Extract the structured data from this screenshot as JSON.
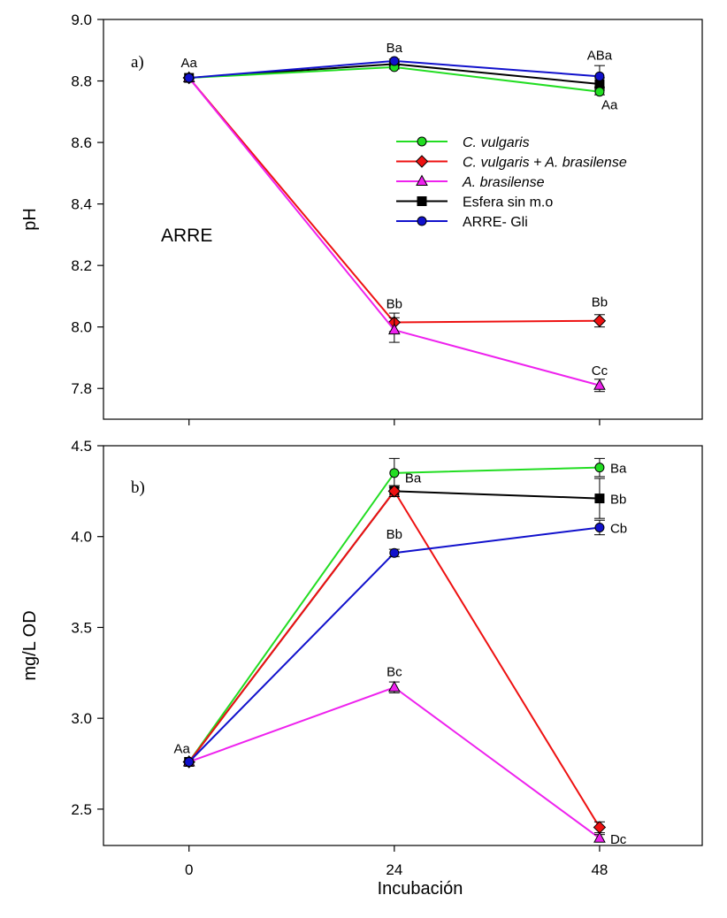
{
  "colors": {
    "C. vulgaris": "#22dd22",
    "C. vulgaris + A. brasilense": "#ee1111",
    "A. brasilense": "#ee22ee",
    "Esfera sin m.o": "#000000",
    "ARRE- Gli": "#1111cc"
  },
  "chart_data": [
    {
      "type": "line",
      "panel_label": "a)",
      "inset_label": "ARRE",
      "ylabel": "pH",
      "xlabel": "",
      "ylim": [
        7.7,
        9.0
      ],
      "yticks": [
        7.8,
        8.0,
        8.2,
        8.4,
        8.6,
        8.8,
        9.0
      ],
      "ytick_labels": [
        "7.8",
        "8.0",
        "8.2",
        "8.4",
        "8.6",
        "8.8",
        "9.0"
      ],
      "xlim": [
        -10,
        60
      ],
      "x": [
        0,
        24,
        48
      ],
      "legend_position": "center-right",
      "series": [
        {
          "name": "C. vulgaris",
          "marker": "circle",
          "values": [
            8.81,
            8.845,
            8.765
          ],
          "errors": [
            0,
            0.006,
            0.01
          ]
        },
        {
          "name": "C. vulgaris + A. brasilense",
          "marker": "diamond",
          "values": [
            8.81,
            8.015,
            8.02
          ],
          "errors": [
            0,
            0.03,
            0.02
          ]
        },
        {
          "name": "A. brasilense",
          "marker": "triangle",
          "values": [
            8.81,
            7.99,
            7.81
          ],
          "errors": [
            0,
            0.04,
            0.02
          ]
        },
        {
          "name": "Esfera sin m.o",
          "marker": "square",
          "values": [
            8.81,
            8.855,
            8.79
          ],
          "errors": [
            0,
            0.006,
            0.02
          ]
        },
        {
          "name": "ARRE- Gli",
          "marker": "circle",
          "values": [
            8.81,
            8.865,
            8.815
          ],
          "errors": [
            0,
            0.006,
            0.035
          ]
        }
      ],
      "annotations": [
        {
          "text": "Aa",
          "x": 0,
          "y": 8.81
        },
        {
          "text": "Ba",
          "x": 24,
          "y": 8.865
        },
        {
          "text": "ABa",
          "x": 48,
          "y": 8.815
        },
        {
          "text": "Aa",
          "x": 48,
          "y": 8.765
        },
        {
          "text": "Bb",
          "x": 24,
          "y": 8.015
        },
        {
          "text": "Bb",
          "x": 48,
          "y": 8.02
        },
        {
          "text": "Cc",
          "x": 48,
          "y": 7.81
        }
      ]
    },
    {
      "type": "line",
      "panel_label": "b)",
      "ylabel": "mg/L OD",
      "xlabel": "Incubación",
      "ylim": [
        2.3,
        4.5
      ],
      "yticks": [
        2.5,
        3.0,
        3.5,
        4.0,
        4.5
      ],
      "ytick_labels": [
        "2.5",
        "3.0",
        "3.5",
        "4.0",
        "4.5"
      ],
      "xlim": [
        -10,
        60
      ],
      "x": [
        0,
        24,
        48
      ],
      "xtick_labels": [
        "0",
        "24",
        "48"
      ],
      "series": [
        {
          "name": "C. vulgaris",
          "marker": "circle",
          "values": [
            2.76,
            4.35,
            4.38
          ],
          "errors": [
            0,
            0.08,
            0.05
          ]
        },
        {
          "name": "C. vulgaris + A. brasilense",
          "marker": "diamond",
          "values": [
            2.76,
            4.25,
            2.4
          ],
          "errors": [
            0,
            0.03,
            0.03
          ]
        },
        {
          "name": "A. brasilense",
          "marker": "triangle",
          "values": [
            2.76,
            3.17,
            2.34
          ],
          "errors": [
            0,
            0.03,
            0.02
          ]
        },
        {
          "name": "Esfera sin m.o",
          "marker": "square",
          "values": [
            2.76,
            4.25,
            4.21
          ],
          "errors": [
            0,
            0.03,
            0.11
          ]
        },
        {
          "name": "ARRE- Gli",
          "marker": "circle",
          "values": [
            2.76,
            3.91,
            4.05
          ],
          "errors": [
            0,
            0.02,
            0.04
          ]
        }
      ],
      "annotations": [
        {
          "text": "Aa",
          "x": 0,
          "y": 2.76
        },
        {
          "text": "Ba",
          "x": 24,
          "y": 4.25
        },
        {
          "text": "Bb",
          "x": 24,
          "y": 3.91
        },
        {
          "text": "Bc",
          "x": 24,
          "y": 3.17
        },
        {
          "text": "Ba",
          "x": 48,
          "y": 4.38
        },
        {
          "text": "Bb",
          "x": 48,
          "y": 4.21
        },
        {
          "text": "Cb",
          "x": 48,
          "y": 4.05
        },
        {
          "text": "Dc",
          "x": 48,
          "y": 2.34
        }
      ]
    }
  ]
}
